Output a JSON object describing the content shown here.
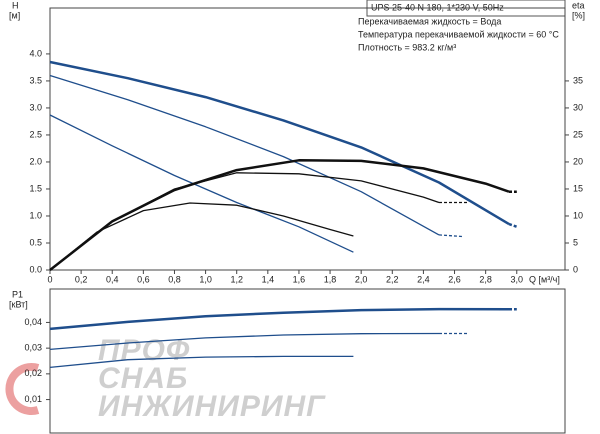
{
  "chart_data": [
    {
      "type": "line",
      "title": "UPS 25-40 N 180, 1*230 V, 50Hz",
      "annotations": [
        "Перекачиваемая жидкость = Вода",
        "Температура перекачиваемой жидкости = 60 °C",
        "Плотность = 983.2 кг/м³"
      ],
      "y_label": "H",
      "y_unit": "[м]",
      "y2_label": "eta",
      "y2_unit": "[%]",
      "x_label": "Q [м³/ч]",
      "xlim": [
        0,
        3.31
      ],
      "xticks": [
        0,
        {
          "value": 0.2,
          "label": "0,2"
        },
        {
          "value": 0.4,
          "label": "0,4"
        },
        {
          "value": 0.6,
          "label": "0,6"
        },
        {
          "value": 0.8,
          "label": "0,8"
        },
        {
          "value": 1.0,
          "label": "1,0"
        },
        {
          "value": 1.2,
          "label": "1,2"
        },
        {
          "value": 1.4,
          "label": "1,4"
        },
        {
          "value": 1.6,
          "label": "1,6"
        },
        {
          "value": 1.8,
          "label": "1,8"
        },
        {
          "value": 2.0,
          "label": "2,0"
        },
        {
          "value": 2.2,
          "label": "2,2"
        },
        {
          "value": 2.4,
          "label": "2,4"
        },
        {
          "value": 2.6,
          "label": "2,6"
        },
        {
          "value": 2.8,
          "label": "2,8"
        },
        {
          "value": 3.0,
          "label": "3,0"
        }
      ],
      "ylim": [
        0,
        4.85
      ],
      "yticks": [
        {
          "value": 0,
          "label": "0.0"
        },
        {
          "value": 0.5,
          "label": "0.5"
        },
        {
          "value": 1,
          "label": "1.0"
        },
        {
          "value": 1.5,
          "label": "1.5"
        },
        {
          "value": 2,
          "label": "2.0"
        },
        {
          "value": 2.5,
          "label": "2.5"
        },
        {
          "value": 3,
          "label": "3.0"
        },
        {
          "value": 3.5,
          "label": "3.5"
        },
        {
          "value": 4,
          "label": "4.0"
        }
      ],
      "y2lim": [
        0,
        48.5
      ],
      "y2ticks": [
        0,
        5,
        10,
        15,
        20,
        25,
        30,
        35
      ],
      "series": [
        {
          "color": "#1f4e8c",
          "width": 2.5,
          "x": [
            0,
            0.5,
            1.0,
            1.5,
            2.0,
            2.5,
            2.95
          ],
          "values": [
            3.85,
            3.55,
            3.2,
            2.77,
            2.27,
            1.62,
            0.85
          ]
        },
        {
          "color": "#1f4e8c",
          "width": 2.5,
          "dashed": true,
          "x": [
            2.95,
            3.0
          ],
          "values": [
            0.85,
            0.8
          ]
        },
        {
          "color": "#1f4e8c",
          "width": 1.3,
          "x": [
            0,
            0.5,
            1.0,
            1.5,
            2.0,
            2.5
          ],
          "values": [
            3.6,
            3.15,
            2.65,
            2.1,
            1.45,
            0.65
          ]
        },
        {
          "color": "#1f4e8c",
          "width": 1.3,
          "dashed": true,
          "x": [
            2.5,
            2.65
          ],
          "values": [
            0.65,
            0.62
          ]
        },
        {
          "color": "#1f4e8c",
          "width": 1.3,
          "x": [
            0,
            0.4,
            0.8,
            1.2,
            1.6,
            1.95
          ],
          "values": [
            2.87,
            2.3,
            1.75,
            1.25,
            0.8,
            0.33
          ]
        },
        {
          "color": "#111111",
          "width": 2.5,
          "axis": "y2",
          "x": [
            0,
            0.4,
            0.8,
            1.2,
            1.6,
            2.0,
            2.4,
            2.8,
            2.95
          ],
          "values": [
            0,
            9,
            14.8,
            18.5,
            20.3,
            20.2,
            18.8,
            16,
            14.5
          ]
        },
        {
          "color": "#111111",
          "width": 2.5,
          "axis": "y2",
          "dashed": true,
          "x": [
            2.95,
            3.0
          ],
          "values": [
            14.5,
            14.5
          ]
        },
        {
          "color": "#111111",
          "width": 1.3,
          "axis": "y2",
          "x": [
            0,
            0.4,
            0.8,
            1.2,
            1.6,
            2.0,
            2.4,
            2.5
          ],
          "values": [
            0,
            9,
            15,
            18,
            17.8,
            16.5,
            13.5,
            12.5
          ]
        },
        {
          "color": "#111111",
          "width": 1.3,
          "axis": "y2",
          "dashed": true,
          "x": [
            2.5,
            2.68
          ],
          "values": [
            12.5,
            12.5
          ]
        },
        {
          "color": "#111111",
          "width": 1.3,
          "axis": "y2",
          "x": [
            0,
            0.3,
            0.6,
            0.9,
            1.2,
            1.5,
            1.8,
            1.95
          ],
          "values": [
            0,
            7,
            11,
            12.4,
            12,
            10,
            7.5,
            6.3
          ]
        }
      ]
    },
    {
      "type": "line",
      "y_label": "P1",
      "y_unit": "[кВт]",
      "xlim": [
        0,
        3.31
      ],
      "ylim": [
        -0.003,
        0.053
      ],
      "yticks": [
        {
          "value": 0.01,
          "label": "0,01"
        },
        {
          "value": 0.02,
          "label": "0,02"
        },
        {
          "value": 0.03,
          "label": "0,03"
        },
        {
          "value": 0.04,
          "label": "0,04"
        }
      ],
      "series": [
        {
          "color": "#1f4e8c",
          "width": 2.5,
          "x": [
            0,
            0.5,
            1.0,
            1.5,
            2.0,
            2.5,
            2.95
          ],
          "values": [
            0.0375,
            0.0402,
            0.0424,
            0.0438,
            0.0448,
            0.0452,
            0.0451
          ]
        },
        {
          "color": "#1f4e8c",
          "width": 2.5,
          "dashed": true,
          "x": [
            2.95,
            3.0
          ],
          "values": [
            0.0451,
            0.0451
          ]
        },
        {
          "color": "#1f4e8c",
          "width": 1.3,
          "x": [
            0,
            0.5,
            1.0,
            1.5,
            2.0,
            2.5
          ],
          "values": [
            0.0295,
            0.032,
            0.034,
            0.0351,
            0.0356,
            0.0357
          ]
        },
        {
          "color": "#1f4e8c",
          "width": 1.3,
          "dashed": true,
          "x": [
            2.5,
            2.68
          ],
          "values": [
            0.0357,
            0.0357
          ]
        },
        {
          "color": "#1f4e8c",
          "width": 1.3,
          "x": [
            0,
            0.5,
            1.0,
            1.5,
            1.95
          ],
          "values": [
            0.0225,
            0.0255,
            0.0265,
            0.0268,
            0.0268
          ]
        }
      ]
    }
  ],
  "watermark": [
    "ПРОФ",
    "СНАБ",
    "ИНЖИНИРИНГ"
  ]
}
